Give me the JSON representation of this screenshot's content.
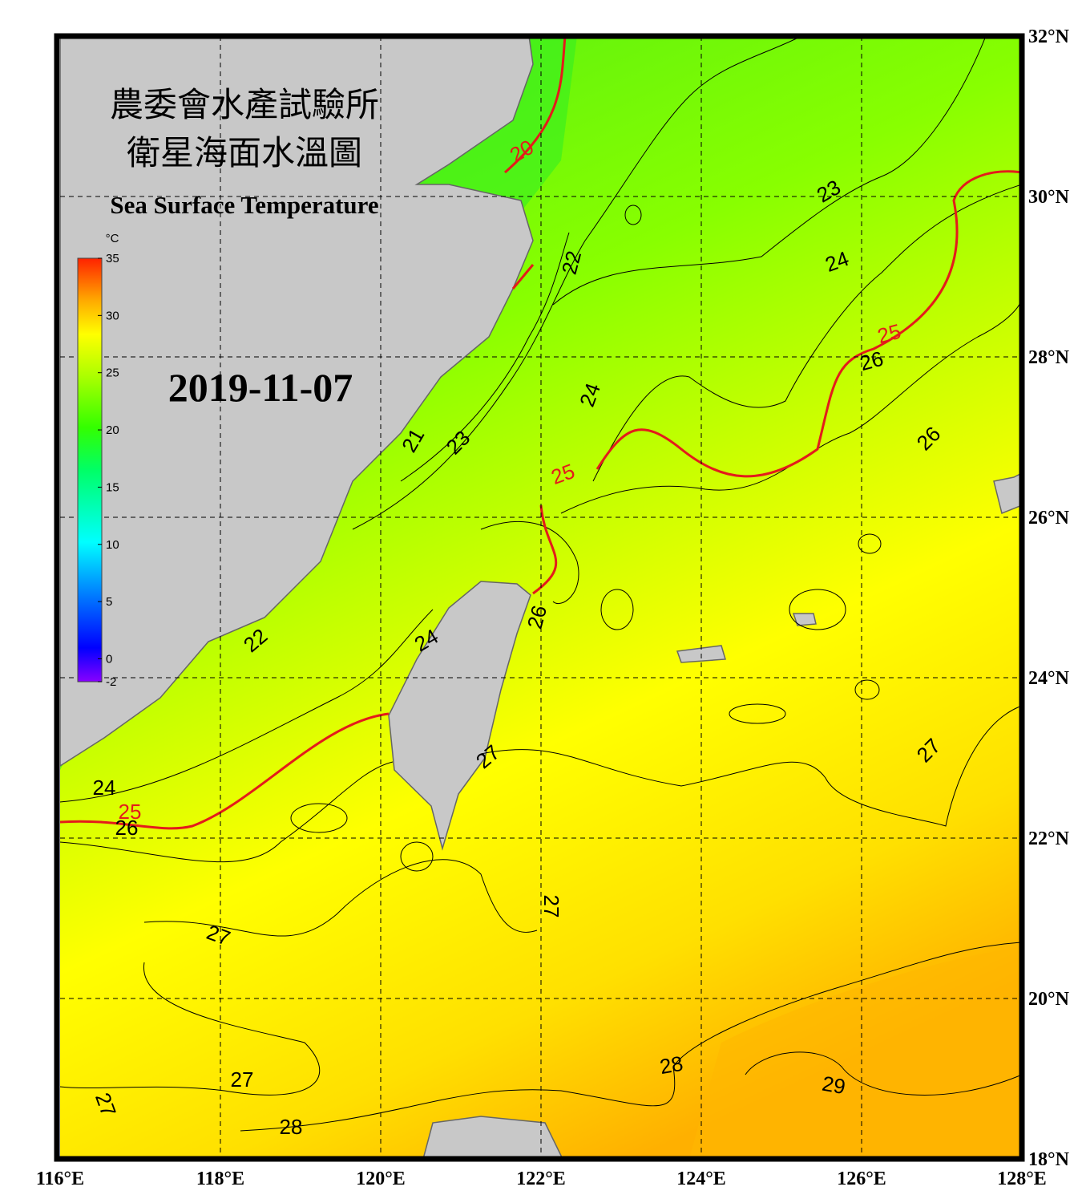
{
  "title_zh": [
    "農委會水產試驗所",
    "衛星海面水溫圖"
  ],
  "title_en": "Sea Surface Temperature",
  "date": "2019-11-07",
  "colorbar": {
    "unit": "°C",
    "lim": [
      -2,
      35
    ],
    "ticks": [
      -2,
      0,
      5,
      10,
      15,
      20,
      25,
      30,
      35
    ]
  },
  "map": {
    "lonlim": [
      116,
      128
    ],
    "latlim": [
      18,
      32
    ],
    "lon_ticks": [
      {
        "value": 116,
        "label": "116°E"
      },
      {
        "value": 118,
        "label": "118°E"
      },
      {
        "value": 120,
        "label": "120°E"
      },
      {
        "value": 122,
        "label": "122°E"
      },
      {
        "value": 124,
        "label": "124°E"
      },
      {
        "value": 126,
        "label": "126°E"
      },
      {
        "value": 128,
        "label": "128°E"
      }
    ],
    "lat_ticks": [
      {
        "value": 18,
        "label": "18°N"
      },
      {
        "value": 20,
        "label": "20°N"
      },
      {
        "value": 22,
        "label": "22°N"
      },
      {
        "value": 24,
        "label": "24°N"
      },
      {
        "value": 26,
        "label": "26°N"
      },
      {
        "value": 28,
        "label": "28°N"
      },
      {
        "value": 30,
        "label": "30°N"
      },
      {
        "value": 32,
        "label": "32°N"
      }
    ],
    "contour_labels": [
      20,
      23,
      22,
      24,
      25,
      26,
      26,
      24,
      21,
      23,
      25,
      26,
      24,
      22,
      27,
      24,
      25,
      26,
      27,
      27,
      27,
      27,
      27,
      28,
      28,
      29
    ]
  }
}
